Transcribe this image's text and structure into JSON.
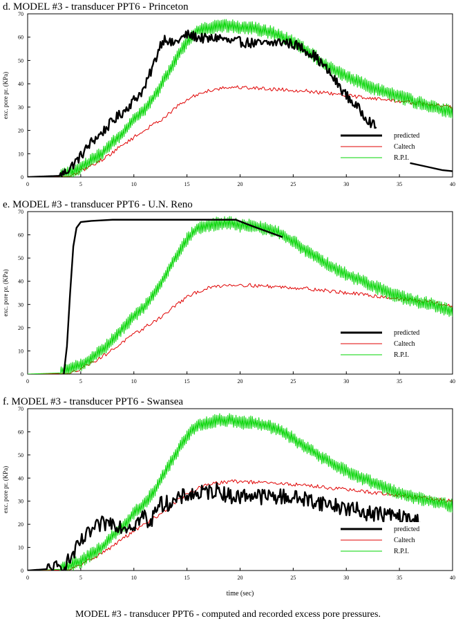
{
  "caption": "MODEL #3 - transducer PPT6 - computed and recorded excess pore pressures.",
  "colors": {
    "predicted": "#000000",
    "Caltech": "#e00000",
    "R.P.I.": "#00d400"
  },
  "chart_data": [
    {
      "type": "line",
      "title": "d. MODEL #3 - transducer PPT6 - Princeton",
      "xlabel": "",
      "ylabel": "exc. pore pr. (KPa)",
      "xlim": [
        0,
        40
      ],
      "ylim": [
        0,
        70
      ],
      "xticks": [
        0,
        5,
        10,
        15,
        20,
        25,
        30,
        35,
        40
      ],
      "yticks": [
        0,
        10,
        20,
        30,
        40,
        50,
        60,
        70
      ],
      "legend": "bottom-right",
      "series": [
        {
          "name": "predicted",
          "noise": 2.2,
          "x": [
            0,
            3,
            3.5,
            4,
            5,
            6,
            7,
            8,
            9,
            10,
            11,
            12,
            12.5,
            13,
            13.5,
            14,
            15,
            16,
            17,
            18,
            19,
            20,
            22,
            24,
            25,
            26,
            27,
            28,
            29,
            30,
            31,
            32,
            32.8
          ],
          "y": [
            0,
            0.5,
            2,
            4,
            9,
            15,
            19,
            24,
            28,
            33,
            38,
            50,
            57,
            60,
            57,
            58,
            61,
            60,
            59,
            60,
            58,
            58,
            57,
            58,
            57,
            55,
            52,
            47,
            41,
            35,
            30,
            25,
            21
          ]
        },
        {
          "name": "predicted",
          "noise": 0,
          "x": [
            36,
            37,
            38,
            39,
            40
          ],
          "y": [
            6,
            5,
            4,
            3,
            2.5
          ]
        },
        {
          "name": "Caltech",
          "noise": 0.8,
          "x": [
            0,
            4,
            5,
            6,
            7,
            8,
            9,
            10,
            11,
            12,
            13,
            14,
            15,
            16,
            17,
            18,
            19,
            20,
            22,
            24,
            26,
            28,
            30,
            32,
            34,
            36,
            38,
            40
          ],
          "y": [
            0,
            0.3,
            2.5,
            5,
            7.5,
            10.5,
            14,
            17,
            20,
            23,
            26,
            30,
            33,
            35.5,
            37,
            38,
            38.5,
            38.5,
            38,
            37.5,
            37,
            36,
            35,
            34,
            33,
            32,
            31,
            30
          ]
        },
        {
          "name": "R.P.I.",
          "noise": 3,
          "x": [
            0,
            3,
            4,
            5,
            6,
            7,
            8,
            9,
            10,
            11,
            12,
            13,
            14,
            15,
            16,
            17,
            18,
            19,
            20,
            21,
            22,
            23,
            24,
            25,
            26,
            27,
            28,
            30,
            32,
            34,
            36,
            38,
            40
          ],
          "y": [
            0,
            0.5,
            2,
            4,
            7,
            10,
            15,
            19,
            25,
            29,
            35,
            43,
            51,
            58,
            63,
            64,
            65,
            65,
            64,
            64,
            63,
            62,
            60,
            58,
            55,
            52,
            48,
            43,
            39,
            36,
            33,
            30,
            28
          ]
        }
      ]
    },
    {
      "type": "line",
      "title": "e. MODEL #3 - transducer PPT6 - U.N. Reno",
      "xlabel": "",
      "ylabel": "exc. pore pr. (KPa)",
      "xlim": [
        0,
        40
      ],
      "ylim": [
        0,
        70
      ],
      "xticks": [
        0,
        5,
        10,
        15,
        20,
        25,
        30,
        35,
        40
      ],
      "yticks": [
        0,
        10,
        20,
        30,
        40,
        50,
        60,
        70
      ],
      "legend": "bottom-right",
      "series": [
        {
          "name": "predicted",
          "noise": 0,
          "x": [
            3.4,
            3.7,
            4,
            4.3,
            4.6,
            5,
            6,
            8,
            10,
            12,
            14,
            16,
            18,
            19.6,
            21,
            22.5,
            24
          ],
          "y": [
            0,
            12,
            35,
            55,
            63,
            65.5,
            66,
            66.5,
            66.5,
            66.5,
            66.5,
            66.5,
            66.5,
            66.5,
            64,
            61.5,
            59
          ]
        },
        {
          "name": "Caltech",
          "noise": 0.8,
          "x": [
            0,
            4,
            5,
            6,
            7,
            8,
            9,
            10,
            11,
            12,
            13,
            14,
            15,
            16,
            17,
            18,
            19,
            20,
            22,
            24,
            26,
            28,
            30,
            32,
            34,
            36,
            38,
            40
          ],
          "y": [
            0,
            0.3,
            2.5,
            5,
            7.5,
            10.5,
            14,
            17,
            20,
            23,
            26,
            30,
            33,
            35.5,
            37,
            38,
            38.5,
            38.5,
            38,
            37.5,
            37,
            36,
            35,
            34,
            33,
            32,
            31,
            29
          ]
        },
        {
          "name": "R.P.I.",
          "noise": 3,
          "x": [
            0,
            3,
            4,
            5,
            6,
            7,
            8,
            9,
            10,
            11,
            12,
            13,
            14,
            15,
            16,
            17,
            18,
            19,
            20,
            21,
            22,
            23,
            24,
            25,
            26,
            27,
            28,
            30,
            32,
            34,
            36,
            38,
            40
          ],
          "y": [
            0,
            0.5,
            2,
            4,
            7,
            10,
            15,
            20,
            25,
            29,
            35,
            43,
            51,
            58,
            63,
            64,
            65,
            65,
            64,
            64,
            63,
            62,
            60,
            57,
            54,
            51,
            48,
            43,
            39,
            35,
            32,
            30,
            27
          ]
        }
      ]
    },
    {
      "type": "line",
      "title": "f. MODEL #3 - transducer PPT6 - Swansea",
      "xlabel": "time (sec)",
      "ylabel": "exc. pore pr. (KPa)",
      "xlim": [
        0,
        40
      ],
      "ylim": [
        0,
        70
      ],
      "xticks": [
        0,
        5,
        10,
        15,
        20,
        25,
        30,
        35,
        40
      ],
      "yticks": [
        0,
        10,
        20,
        30,
        40,
        50,
        60,
        70
      ],
      "legend": "bottom-right",
      "series": [
        {
          "name": "predicted",
          "noise": 3.5,
          "x": [
            0,
            3,
            3.5,
            4,
            5,
            6,
            7,
            8,
            9,
            10,
            11,
            11.5,
            12,
            13,
            14,
            15,
            16,
            17,
            18,
            19,
            20,
            21,
            22,
            24,
            26,
            28,
            30,
            32,
            34,
            36,
            37
          ],
          "y": [
            0,
            1,
            2,
            5,
            12,
            17,
            20,
            21,
            19,
            20,
            24,
            18,
            28,
            29,
            30,
            33,
            33,
            34,
            35,
            32,
            32,
            33,
            32,
            32,
            31,
            29,
            27,
            25,
            24,
            22,
            21
          ]
        },
        {
          "name": "Caltech",
          "noise": 0.8,
          "x": [
            0,
            4,
            5,
            6,
            7,
            8,
            9,
            10,
            11,
            12,
            13,
            14,
            15,
            16,
            17,
            18,
            19,
            20,
            22,
            24,
            26,
            28,
            30,
            32,
            34,
            36,
            38,
            40
          ],
          "y": [
            0,
            0.3,
            2.5,
            5,
            7.5,
            10.5,
            14,
            17,
            20,
            23,
            26,
            30,
            33,
            35.5,
            37,
            38,
            38.5,
            38.5,
            38,
            37.5,
            37,
            36,
            35,
            34,
            33,
            32,
            31,
            30
          ]
        },
        {
          "name": "R.P.I.",
          "noise": 3,
          "x": [
            0,
            3,
            4,
            5,
            6,
            7,
            8,
            9,
            10,
            11,
            12,
            13,
            14,
            15,
            16,
            17,
            18,
            19,
            20,
            21,
            22,
            23,
            24,
            25,
            26,
            27,
            28,
            30,
            32,
            34,
            36,
            38,
            40
          ],
          "y": [
            0,
            0.5,
            2,
            4,
            7,
            10,
            15,
            19,
            25,
            29,
            35,
            43,
            51,
            58,
            63,
            64,
            65,
            65,
            64,
            64,
            63,
            62,
            60,
            57,
            54,
            51,
            48,
            43,
            39,
            35,
            32,
            30,
            28
          ]
        }
      ]
    }
  ]
}
